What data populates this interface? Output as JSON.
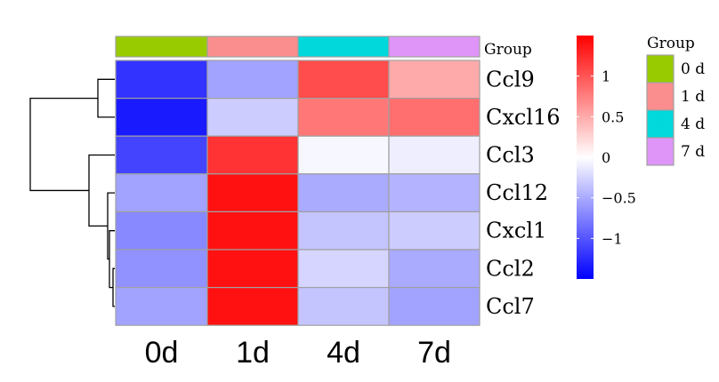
{
  "chart_data": {
    "type": "heatmap",
    "columns": [
      "0d",
      "1d",
      "4d",
      "7d"
    ],
    "rows": [
      "Ccl9",
      "Cxcl16",
      "Ccl3",
      "Ccl12",
      "Cxcl1",
      "Ccl2",
      "Ccl7"
    ],
    "values": [
      [
        -1.2,
        -0.55,
        1.05,
        0.5
      ],
      [
        -1.35,
        -0.3,
        0.8,
        0.85
      ],
      [
        -1.1,
        1.2,
        -0.05,
        -0.1
      ],
      [
        -0.55,
        1.4,
        -0.5,
        -0.45
      ],
      [
        -0.7,
        1.4,
        -0.35,
        -0.3
      ],
      [
        -0.65,
        1.4,
        -0.25,
        -0.5
      ],
      [
        -0.55,
        1.4,
        -0.35,
        -0.55
      ]
    ],
    "annotation": {
      "label": "Group",
      "values": [
        "0 d",
        "1 d",
        "4 d",
        "7 d"
      ],
      "colors": [
        "#99cc00",
        "#fa8e8e",
        "#00d8dc",
        "#df95f8"
      ]
    },
    "legend": {
      "title": "Group",
      "items": [
        "0 d",
        "1 d",
        "4 d",
        "7 d"
      ],
      "colors": [
        "#99cc00",
        "#fa8e8e",
        "#00d8dc",
        "#df95f8"
      ]
    },
    "colorscale": {
      "low": "#0000ff",
      "mid": "#ffffff",
      "high": "#ff0000",
      "range": [
        -1.5,
        1.5
      ],
      "ticks": [
        1,
        0.5,
        0,
        -0.5,
        -1
      ],
      "tick_labels": [
        "1",
        "0.5",
        "0",
        "−0.5",
        "−1"
      ]
    },
    "row_dendrogram": "left",
    "cell_border_color": "#a0a0a0"
  }
}
